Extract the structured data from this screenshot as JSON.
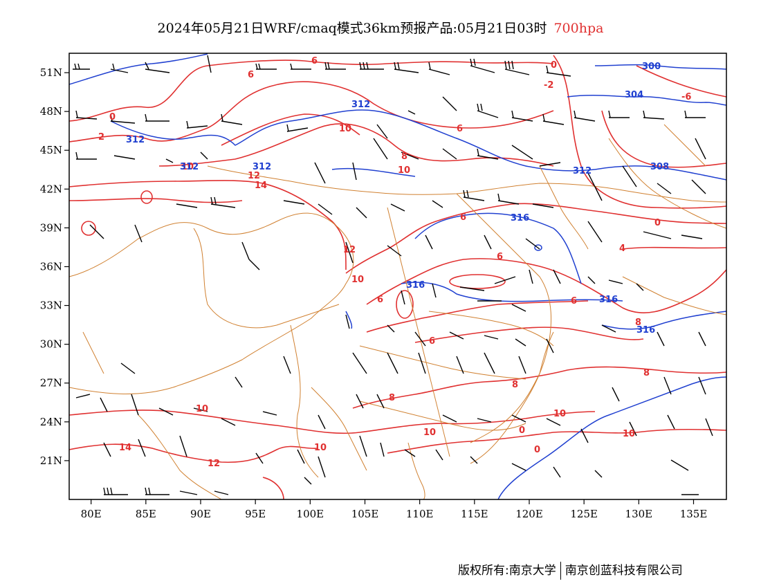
{
  "header": {
    "title": "2024年05月21日WRF/cmaq模式36km预报产品:05月21日03时",
    "level": "700hpa"
  },
  "footer": {
    "copyright": "版权所有:南京大学",
    "company": "南京创蓝科技有限公司"
  },
  "axes": {
    "lon_ticks": [
      "80E",
      "85E",
      "90E",
      "95E",
      "100E",
      "105E",
      "110E",
      "115E",
      "120E",
      "125E",
      "130E",
      "135E"
    ],
    "lat_ticks": [
      "51N",
      "48N",
      "45N",
      "42N",
      "39N",
      "36N",
      "33N",
      "30N",
      "27N",
      "24N",
      "21N"
    ],
    "lon_values": [
      80,
      85,
      90,
      95,
      100,
      105,
      110,
      115,
      120,
      125,
      130,
      135
    ],
    "lat_values": [
      51,
      48,
      45,
      42,
      39,
      36,
      33,
      30,
      27,
      24,
      21
    ],
    "lon_range": [
      78,
      138
    ],
    "lat_range": [
      18,
      52.5
    ]
  },
  "legend_colors": {
    "temperature": "#e03030",
    "geopotential": "#2040d0",
    "boundary": "#d08030",
    "wind": "#000000"
  },
  "temperature_labels": [
    "0",
    "2",
    "6",
    "10",
    "10",
    "12",
    "14",
    "10",
    "12",
    "10",
    "6",
    "6",
    "8",
    "6",
    "8",
    "6",
    "10",
    "8",
    "10",
    "14",
    "10",
    "12",
    "0",
    "10",
    "10",
    "6",
    "6",
    "4",
    "0",
    "-2",
    "-6",
    "8",
    "8",
    "0",
    "0",
    "6"
  ],
  "height_labels": [
    "312",
    "312",
    "312",
    "312",
    "316",
    "316",
    "316",
    "316",
    "312",
    "308",
    "304",
    "300"
  ]
}
